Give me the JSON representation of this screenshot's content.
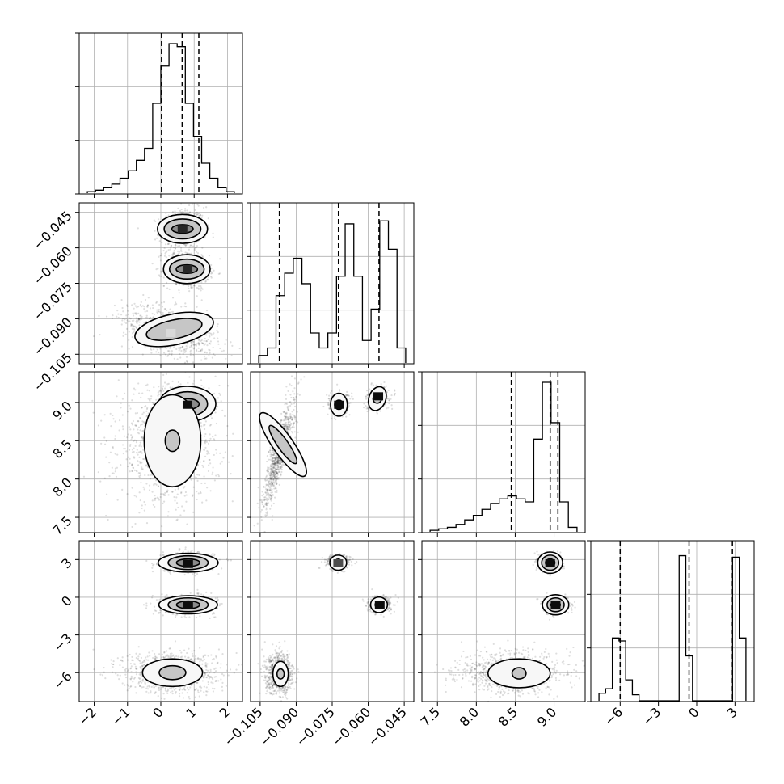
{
  "chart_data": {
    "type": "corner",
    "n_params": 4,
    "grid": true,
    "colors": {
      "ink": "#000000",
      "grid": "#b0b0b0",
      "background": "#ffffff"
    },
    "axes": [
      {
        "lim": [
          -2.45,
          2.45
        ],
        "ticks": [
          -2,
          -1,
          0,
          1,
          2
        ],
        "tick_labels": [
          "−2",
          "−1",
          "0",
          "1",
          "2"
        ]
      },
      {
        "lim": [
          -0.109,
          -0.041
        ],
        "ticks": [
          -0.105,
          -0.09,
          -0.075,
          -0.06,
          -0.045
        ],
        "tick_labels": [
          "−0.105",
          "−0.090",
          "−0.075",
          "−0.060",
          "−0.045"
        ]
      },
      {
        "lim": [
          7.3,
          9.4
        ],
        "ticks": [
          7.5,
          8.0,
          8.5,
          9.0
        ],
        "tick_labels": [
          "7.5",
          "8.0",
          "8.5",
          "9.0"
        ]
      },
      {
        "lim": [
          -8.3,
          4.5
        ],
        "ticks": [
          -6,
          -3,
          0,
          3
        ],
        "tick_labels": [
          "−6",
          "−3",
          "0",
          "3"
        ]
      }
    ],
    "histograms": [
      {
        "param": 0,
        "counts": [
          0.01,
          0.02,
          0.04,
          0.06,
          0.1,
          0.15,
          0.22,
          0.3,
          0.6,
          0.85,
          1.0,
          0.98,
          0.6,
          0.38,
          0.2,
          0.1,
          0.04,
          0.01
        ],
        "quantiles": [
          0.02,
          0.64,
          1.14
        ]
      },
      {
        "param": 1,
        "counts": [
          0.05,
          0.1,
          0.45,
          0.6,
          0.7,
          0.53,
          0.2,
          0.1,
          0.2,
          0.58,
          0.93,
          0.58,
          0.15,
          0.36,
          0.95,
          0.76,
          0.1
        ],
        "quantiles": [
          -0.097,
          -0.0724,
          -0.0555
        ]
      },
      {
        "param": 2,
        "counts": [
          0.01,
          0.02,
          0.03,
          0.05,
          0.08,
          0.11,
          0.15,
          0.19,
          0.22,
          0.24,
          0.22,
          0.2,
          0.62,
          1.0,
          0.73,
          0.2,
          0.03
        ],
        "quantiles": [
          8.45,
          8.95,
          9.05
        ]
      },
      {
        "param": 3,
        "counts": [
          0.05,
          0.08,
          0.42,
          0.4,
          0.14,
          0.04,
          0.0,
          0.0,
          0.0,
          0.0,
          0.0,
          0.0,
          0.97,
          0.3,
          0.0,
          0.0,
          0.0,
          0.0,
          0.0,
          0.0,
          0.96,
          0.42
        ],
        "quantiles": [
          -6.0,
          -0.6,
          2.8
        ]
      }
    ],
    "scatter_panels": [
      {
        "x": 0,
        "y": 1,
        "clusters": [
          {
            "cx": 0.65,
            "cy": -0.052,
            "sx": 0.33,
            "sy": 0.0042,
            "r": 0.1,
            "n": 520
          },
          {
            "cx": 0.78,
            "cy": -0.069,
            "sx": 0.33,
            "sy": 0.0042,
            "r": -0.1,
            "n": 520
          },
          {
            "cx": 0.3,
            "cy": -0.095,
            "sx": 0.72,
            "sy": 0.0055,
            "r": -0.45,
            "n": 820
          }
        ],
        "contours": [
          {
            "cx": 0.65,
            "cy": -0.052,
            "rx": [
              0.32,
              0.55,
              0.75
            ],
            "ry": [
              0.0018,
              0.0042,
              0.0061
            ],
            "rot": 0
          },
          {
            "cx": 0.78,
            "cy": -0.069,
            "rx": [
              0.32,
              0.52,
              0.7
            ],
            "ry": [
              0.0018,
              0.0042,
              0.0061
            ],
            "rot": 0
          },
          {
            "cx": 0.4,
            "cy": -0.0945,
            "rx": [
              0.85,
              1.2
            ],
            "ry": [
              0.004,
              0.0065
            ],
            "rot": 12
          }
        ],
        "dense_cells": [
          {
            "x": 0.65,
            "y": -0.052,
            "level": 0.15
          },
          {
            "x": 0.8,
            "y": -0.069,
            "level": 0.15
          },
          {
            "x": 0.3,
            "y": -0.096,
            "level": 0.85
          }
        ]
      },
      {
        "x": 0,
        "y": 2,
        "clusters": [
          {
            "cx": 0.75,
            "cy": 9.0,
            "sx": 0.35,
            "sy": 0.1,
            "r": 0.0,
            "n": 700
          },
          {
            "cx": 0.2,
            "cy": 8.45,
            "sx": 0.75,
            "sy": 0.38,
            "r": 0.05,
            "n": 1100
          }
        ],
        "contours": [
          {
            "cx": 0.8,
            "cy": 8.98,
            "rx": [
              0.35,
              0.6,
              0.85
            ],
            "ry": [
              0.07,
              0.16,
              0.23
            ],
            "rot": 0
          },
          {
            "cx": 0.35,
            "cy": 8.5,
            "rx": [
              0.22,
              0.85
            ],
            "ry": [
              0.14,
              0.6
            ],
            "rot": 0
          }
        ],
        "dense_cells": [
          {
            "x": 0.8,
            "y": 8.97,
            "level": 0.05
          }
        ]
      },
      {
        "x": 0,
        "y": 3,
        "clusters": [
          {
            "cx": 0.8,
            "cy": 2.8,
            "sx": 0.4,
            "sy": 0.38,
            "r": 0.0,
            "n": 600
          },
          {
            "cx": 0.8,
            "cy": -0.6,
            "sx": 0.42,
            "sy": 0.36,
            "r": 0.0,
            "n": 600
          },
          {
            "cx": 0.3,
            "cy": -6.0,
            "sx": 0.72,
            "sy": 0.85,
            "r": 0.0,
            "n": 900
          }
        ],
        "contours": [
          {
            "cx": 0.82,
            "cy": 2.75,
            "rx": [
              0.35,
              0.6,
              0.9
            ],
            "ry": [
              0.3,
              0.55,
              0.75
            ],
            "rot": 0
          },
          {
            "cx": 0.82,
            "cy": -0.6,
            "rx": [
              0.35,
              0.6,
              0.88
            ],
            "ry": [
              0.3,
              0.55,
              0.72
            ],
            "rot": 0
          },
          {
            "cx": 0.35,
            "cy": -6.0,
            "rx": [
              0.4,
              0.9
            ],
            "ry": [
              0.55,
              1.1
            ],
            "rot": 0
          }
        ],
        "dense_cells": [
          {
            "x": 0.82,
            "y": 2.65,
            "level": 0.05
          },
          {
            "x": 0.82,
            "y": -0.62,
            "level": 0.05
          }
        ]
      },
      {
        "x": 1,
        "y": 2,
        "clusters": [
          {
            "cx": -0.072,
            "cy": 8.97,
            "sx": 0.0022,
            "sy": 0.07,
            "r": 0.0,
            "n": 420
          },
          {
            "cx": -0.056,
            "cy": 9.05,
            "sx": 0.0022,
            "sy": 0.07,
            "r": 0.3,
            "n": 420
          },
          {
            "cx": -0.097,
            "cy": 8.35,
            "sx": 0.0032,
            "sy": 0.35,
            "r": 0.85,
            "n": 900
          }
        ],
        "contours": [
          {
            "cx": -0.0722,
            "cy": 8.97,
            "rx": [
              0.0018,
              0.0035
            ],
            "ry": [
              0.06,
              0.15
            ],
            "rot": 0
          },
          {
            "cx": -0.0562,
            "cy": 9.05,
            "rx": [
              0.0018,
              0.0035
            ],
            "ry": [
              0.06,
              0.16
            ],
            "rot": -20
          },
          {
            "cx": -0.0955,
            "cy": 8.45,
            "rx": [
              0.0022,
              0.0042
            ],
            "ry": [
              0.3,
              0.5
            ],
            "rot": 35
          }
        ],
        "dense_cells": [
          {
            "x": -0.0722,
            "y": 8.97,
            "level": 0.05
          },
          {
            "x": -0.0558,
            "y": 9.08,
            "level": 0.05
          }
        ]
      },
      {
        "x": 1,
        "y": 3,
        "clusters": [
          {
            "cx": -0.0725,
            "cy": 2.8,
            "sx": 0.0025,
            "sy": 0.3,
            "r": 0.0,
            "n": 380
          },
          {
            "cx": -0.0555,
            "cy": -0.6,
            "sx": 0.0025,
            "sy": 0.32,
            "r": 0.0,
            "n": 380
          },
          {
            "cx": -0.097,
            "cy": -6.1,
            "sx": 0.0028,
            "sy": 0.8,
            "r": 0.0,
            "n": 800
          }
        ],
        "contours": [
          {
            "cx": -0.0725,
            "cy": 2.75,
            "rx": [
              0.0016,
              0.0035
            ],
            "ry": [
              0.28,
              0.6
            ],
            "rot": 0
          },
          {
            "cx": -0.0555,
            "cy": -0.6,
            "rx": [
              0.0016,
              0.0035
            ],
            "ry": [
              0.28,
              0.62
            ],
            "rot": 0
          },
          {
            "cx": -0.0965,
            "cy": -6.1,
            "rx": [
              0.0015,
              0.0032
            ],
            "ry": [
              0.4,
              1.0
            ],
            "rot": 0
          }
        ],
        "dense_cells": [
          {
            "x": -0.0725,
            "y": 2.7,
            "level": 0.3
          },
          {
            "x": -0.0552,
            "y": -0.6,
            "level": 0.05
          }
        ]
      },
      {
        "x": 2,
        "y": 3,
        "clusters": [
          {
            "cx": 8.95,
            "cy": 2.8,
            "sx": 0.07,
            "sy": 0.35,
            "r": 0.0,
            "n": 420
          },
          {
            "cx": 9.03,
            "cy": -0.6,
            "sx": 0.08,
            "sy": 0.32,
            "r": 0.0,
            "n": 420
          },
          {
            "cx": 8.45,
            "cy": -6.0,
            "sx": 0.33,
            "sy": 0.85,
            "r": 0.0,
            "n": 900
          }
        ],
        "contours": [
          {
            "cx": 8.95,
            "cy": 2.75,
            "rx": [
              0.06,
              0.11,
              0.16
            ],
            "ry": [
              0.3,
              0.6,
              0.85
            ],
            "rot": 0
          },
          {
            "cx": 9.02,
            "cy": -0.6,
            "rx": [
              0.06,
              0.11,
              0.17
            ],
            "ry": [
              0.28,
              0.55,
              0.8
            ],
            "rot": 0
          },
          {
            "cx": 8.55,
            "cy": -6.05,
            "rx": [
              0.09,
              0.4
            ],
            "ry": [
              0.45,
              1.15
            ],
            "rot": 0
          }
        ],
        "dense_cells": [
          {
            "x": 8.95,
            "y": 2.7,
            "level": 0.05
          },
          {
            "x": 9.02,
            "y": -0.62,
            "level": 0.05
          }
        ]
      }
    ]
  }
}
